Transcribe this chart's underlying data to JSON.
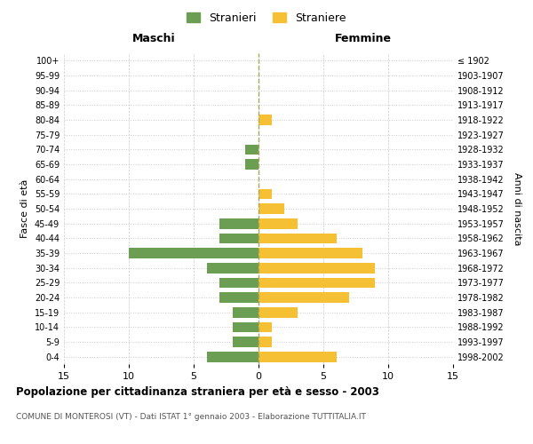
{
  "age_groups": [
    "0-4",
    "5-9",
    "10-14",
    "15-19",
    "20-24",
    "25-29",
    "30-34",
    "35-39",
    "40-44",
    "45-49",
    "50-54",
    "55-59",
    "60-64",
    "65-69",
    "70-74",
    "75-79",
    "80-84",
    "85-89",
    "90-94",
    "95-99",
    "100+"
  ],
  "birth_years": [
    "1998-2002",
    "1993-1997",
    "1988-1992",
    "1983-1987",
    "1978-1982",
    "1973-1977",
    "1968-1972",
    "1963-1967",
    "1958-1962",
    "1953-1957",
    "1948-1952",
    "1943-1947",
    "1938-1942",
    "1933-1937",
    "1928-1932",
    "1923-1927",
    "1918-1922",
    "1913-1917",
    "1908-1912",
    "1903-1907",
    "≤ 1902"
  ],
  "males": [
    4,
    2,
    2,
    2,
    3,
    3,
    4,
    10,
    3,
    3,
    0,
    0,
    0,
    1,
    1,
    0,
    0,
    0,
    0,
    0,
    0
  ],
  "females": [
    6,
    1,
    1,
    3,
    7,
    9,
    9,
    8,
    6,
    3,
    2,
    1,
    0,
    0,
    0,
    0,
    1,
    0,
    0,
    0,
    0
  ],
  "male_color": "#6b9e52",
  "female_color": "#f5c033",
  "background_color": "#ffffff",
  "grid_color": "#cccccc",
  "dashed_line_color": "#aaa855",
  "xlim": 15,
  "title": "Popolazione per cittadinanza straniera per età e sesso - 2003",
  "subtitle": "COMUNE DI MONTEROSI (VT) - Dati ISTAT 1° gennaio 2003 - Elaborazione TUTTITALIA.IT",
  "ylabel_left": "Fasce di età",
  "ylabel_right": "Anni di nascita",
  "header_left": "Maschi",
  "header_right": "Femmine",
  "legend_stranieri": "Stranieri",
  "legend_straniere": "Straniere"
}
